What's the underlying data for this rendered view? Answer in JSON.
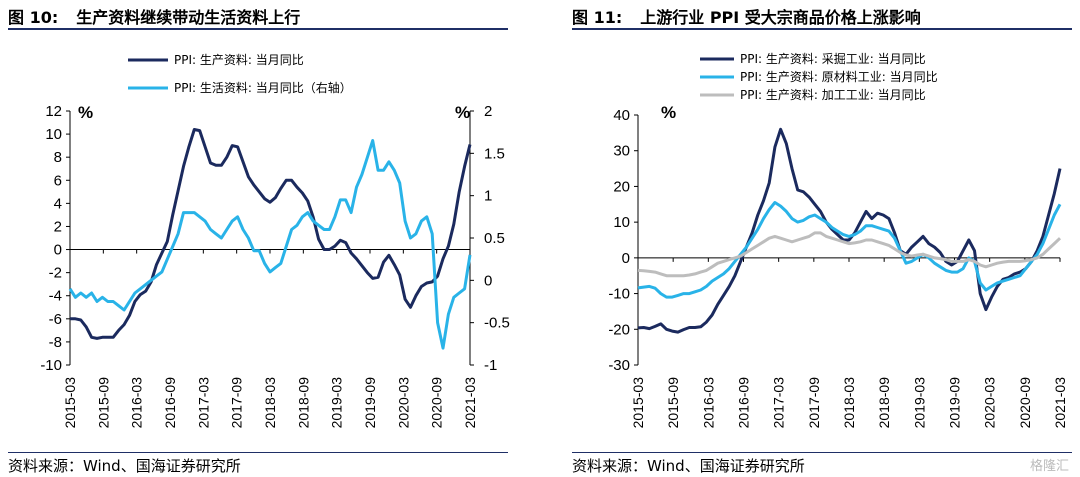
{
  "left_panel": {
    "title_num": "图 10:",
    "title_text": "生产资料继续带动生活资料上行",
    "source": "资料来源：Wind、国海证券研究所"
  },
  "right_panel": {
    "title_num": "图 11:",
    "title_text": "上游行业 PPI 受大宗商品价格上涨影响",
    "source": "资料来源：Wind、国海证券研究所"
  },
  "watermark": "格隆汇",
  "colors": {
    "dark_navy": "#1b2a5e",
    "light_blue": "#29b3e8",
    "gray": "#bdbdbd",
    "rule": "#1f2f66"
  },
  "chart_data": [
    {
      "type": "line",
      "x_tick_labels": [
        "2015-03",
        "2015-09",
        "2016-03",
        "2016-09",
        "2017-03",
        "2017-09",
        "2018-03",
        "2018-09",
        "2019-03",
        "2019-09",
        "2020-03",
        "2020-09",
        "2021-03"
      ],
      "y_unit_left": "%",
      "y_unit_right": "%",
      "ylim_left": [
        -10,
        12
      ],
      "yticks_left": [
        "12",
        "10",
        "8",
        "6",
        "4",
        "2",
        "0",
        "-2",
        "-4",
        "-6",
        "-8",
        "-10"
      ],
      "ylim_right": [
        -1,
        2
      ],
      "yticks_right": [
        "2",
        "1.5",
        "1",
        "0.5",
        "0",
        "-0.5",
        "-1"
      ],
      "legend": "top-left",
      "series": [
        {
          "name": "PPI: 生产资料: 当月同比",
          "axis": "left",
          "color": "#1b2a5e",
          "values": [
            -6.0,
            -6.0,
            -6.1,
            -6.7,
            -7.6,
            -7.7,
            -7.6,
            -7.6,
            -7.6,
            -7.0,
            -6.5,
            -5.7,
            -4.5,
            -3.9,
            -3.6,
            -2.8,
            -1.3,
            -0.3,
            0.7,
            3.0,
            5.1,
            7.2,
            8.9,
            10.4,
            10.3,
            8.9,
            7.5,
            7.3,
            7.3,
            8.0,
            9.0,
            8.9,
            7.6,
            6.3,
            5.6,
            5.0,
            4.4,
            4.1,
            4.5,
            5.3,
            6.0,
            6.0,
            5.4,
            4.9,
            4.2,
            2.8,
            0.9,
            0.0,
            0.0,
            0.3,
            0.8,
            0.6,
            -0.3,
            -0.8,
            -1.4,
            -2.0,
            -2.5,
            -2.4,
            -1.1,
            -0.5,
            -1.3,
            -2.2,
            -4.3,
            -5.0,
            -4.0,
            -3.2,
            -2.9,
            -2.8,
            -2.3,
            -0.8,
            0.3,
            2.2,
            5.0,
            7.2,
            9.1
          ]
        },
        {
          "name": "PPI: 生活资料: 当月同比（右轴）",
          "axis": "right",
          "color": "#29b3e8",
          "values": [
            -0.1,
            -0.2,
            -0.15,
            -0.2,
            -0.15,
            -0.25,
            -0.2,
            -0.25,
            -0.25,
            -0.3,
            -0.35,
            -0.25,
            -0.15,
            -0.1,
            -0.05,
            0.0,
            0.05,
            0.1,
            0.25,
            0.4,
            0.55,
            0.8,
            0.8,
            0.8,
            0.75,
            0.7,
            0.6,
            0.55,
            0.5,
            0.6,
            0.7,
            0.75,
            0.6,
            0.5,
            0.35,
            0.35,
            0.2,
            0.1,
            0.15,
            0.2,
            0.4,
            0.6,
            0.65,
            0.75,
            0.8,
            0.7,
            0.65,
            0.6,
            0.6,
            0.75,
            0.95,
            0.95,
            0.8,
            1.1,
            1.25,
            1.45,
            1.65,
            1.3,
            1.3,
            1.4,
            1.3,
            1.15,
            0.7,
            0.5,
            0.55,
            0.7,
            0.75,
            0.55,
            -0.5,
            -0.8,
            -0.4,
            -0.2,
            -0.15,
            -0.1,
            0.3
          ]
        }
      ]
    },
    {
      "type": "line",
      "x_tick_labels": [
        "2015-03",
        "2015-09",
        "2016-03",
        "2016-09",
        "2017-03",
        "2017-09",
        "2018-03",
        "2018-09",
        "2019-03",
        "2019-09",
        "2020-03",
        "2020-09",
        "2021-03"
      ],
      "y_unit_left": "%",
      "ylim_left": [
        -30,
        40
      ],
      "yticks_left": [
        "40",
        "30",
        "20",
        "10",
        "0",
        "-10",
        "-20",
        "-30"
      ],
      "legend": "top-left",
      "series": [
        {
          "name": "PPI: 生产资料: 采掘工业: 当月同比",
          "color": "#1b2a5e",
          "values": [
            -19.6,
            -19.5,
            -19.8,
            -19.2,
            -18.5,
            -20.0,
            -20.5,
            -20.8,
            -20.1,
            -19.5,
            -19.5,
            -19.3,
            -18.0,
            -16.0,
            -13.0,
            -10.5,
            -8.0,
            -5.0,
            -1.0,
            3.0,
            7.0,
            12.0,
            16.0,
            21.0,
            31.0,
            36.0,
            32.0,
            25.0,
            19.0,
            18.5,
            17.0,
            15.0,
            13.0,
            10.0,
            8.0,
            6.5,
            5.0,
            5.0,
            7.0,
            10.0,
            13.0,
            11.0,
            12.5,
            12.0,
            11.0,
            7.0,
            2.0,
            1.0,
            3.0,
            4.5,
            6.0,
            4.0,
            3.0,
            1.5,
            -1.0,
            -2.0,
            -1.0,
            2.0,
            5.0,
            2.0,
            -10.0,
            -14.5,
            -11.0,
            -8.0,
            -6.0,
            -5.5,
            -4.5,
            -4.0,
            -3.0,
            -1.0,
            2.0,
            6.0,
            12.0,
            18.0,
            25.0
          ]
        },
        {
          "name": "PPI: 生产资料: 原材料工业: 当月同比",
          "color": "#29b3e8",
          "values": [
            -8.4,
            -8.2,
            -8.0,
            -8.5,
            -10.0,
            -11.0,
            -11.0,
            -10.5,
            -10.0,
            -10.0,
            -9.5,
            -9.0,
            -8.0,
            -6.5,
            -5.5,
            -4.5,
            -3.0,
            -1.0,
            1.0,
            3.0,
            5.5,
            8.0,
            11.0,
            13.5,
            15.5,
            14.5,
            13.0,
            11.0,
            10.0,
            10.5,
            11.5,
            12.0,
            11.0,
            10.0,
            8.5,
            7.5,
            6.5,
            6.0,
            6.5,
            7.5,
            9.0,
            9.0,
            8.5,
            8.0,
            7.5,
            5.5,
            2.0,
            -1.5,
            -1.0,
            0.0,
            1.0,
            0.0,
            -1.5,
            -2.5,
            -3.5,
            -4.0,
            -4.0,
            -3.0,
            0.0,
            -1.0,
            -7.0,
            -9.0,
            -8.0,
            -7.0,
            -6.5,
            -6.0,
            -5.5,
            -5.0,
            -3.0,
            -1.0,
            1.0,
            4.0,
            8.0,
            12.0,
            15.0
          ]
        },
        {
          "name": "PPI: 生产资料: 加工工业: 当月同比",
          "color": "#bdbdbd",
          "values": [
            -3.5,
            -3.6,
            -3.8,
            -4.0,
            -4.5,
            -5.0,
            -5.0,
            -5.0,
            -5.0,
            -4.8,
            -4.5,
            -4.0,
            -3.5,
            -2.5,
            -1.5,
            -1.0,
            -0.5,
            0.0,
            0.5,
            1.5,
            2.5,
            3.5,
            4.5,
            5.5,
            6.0,
            5.5,
            5.0,
            4.5,
            5.0,
            5.5,
            6.0,
            7.0,
            7.0,
            6.0,
            5.5,
            5.0,
            4.5,
            4.0,
            4.2,
            4.5,
            5.0,
            5.0,
            4.5,
            4.0,
            3.5,
            2.5,
            1.5,
            0.8,
            0.5,
            0.8,
            1.0,
            0.5,
            0.0,
            -0.2,
            -0.5,
            -1.0,
            -1.0,
            -1.0,
            -0.5,
            -1.0,
            -2.0,
            -2.5,
            -2.0,
            -1.5,
            -1.2,
            -1.0,
            -1.0,
            -1.0,
            -0.8,
            -0.5,
            0.0,
            1.0,
            2.5,
            4.0,
            5.5
          ]
        }
      ]
    }
  ]
}
